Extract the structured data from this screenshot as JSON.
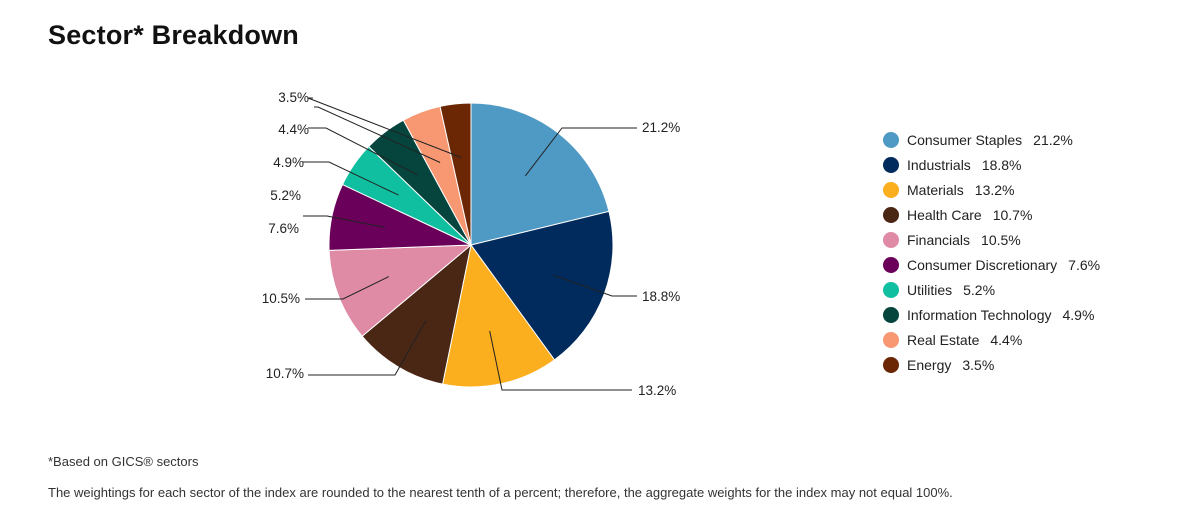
{
  "title": "Sector* Breakdown",
  "footnote": "*Based on GICS® sectors",
  "disclaimer": "The weightings for each sector of the index are rounded to the nearest tenth of a percent; therefore, the aggregate weights for the index may not equal 100%.",
  "chart_data": {
    "type": "pie",
    "title": "Sector* Breakdown",
    "legend_position": "right",
    "slices": [
      {
        "label": "Consumer Staples",
        "value": 21.2,
        "display": "21.2%",
        "color": "#4f9ac4"
      },
      {
        "label": "Industrials",
        "value": 18.8,
        "display": "18.8%",
        "color": "#002b5c"
      },
      {
        "label": "Materials",
        "value": 13.2,
        "display": "13.2%",
        "color": "#fbae1e"
      },
      {
        "label": "Health Care",
        "value": 10.7,
        "display": "10.7%",
        "color": "#4a2614"
      },
      {
        "label": "Financials",
        "value": 10.5,
        "display": "10.5%",
        "color": "#df8ba6"
      },
      {
        "label": "Consumer Discretionary",
        "value": 7.6,
        "display": "7.6%",
        "color": "#6a0059"
      },
      {
        "label": "Utilities",
        "value": 5.2,
        "display": "5.2%",
        "color": "#0fbf9f"
      },
      {
        "label": "Information Technology",
        "value": 4.9,
        "display": "4.9%",
        "color": "#06453e"
      },
      {
        "label": "Real Estate",
        "value": 4.4,
        "display": "4.4%",
        "color": "#f79872"
      },
      {
        "label": "Energy",
        "value": 3.5,
        "display": "3.5%",
        "color": "#6b2604"
      }
    ]
  }
}
